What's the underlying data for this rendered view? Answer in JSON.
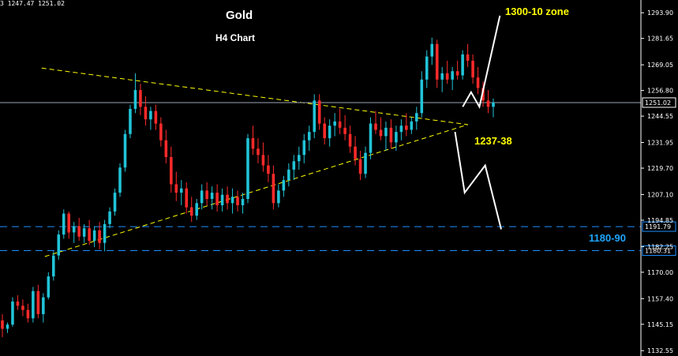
{
  "ohlc_text": "3 1247.47 1251.02",
  "chart_data": {
    "type": "candlestick",
    "title": "Gold",
    "subtitle": "H4 Chart",
    "ylim": [
      1130,
      1300
    ],
    "y_ticks": [
      "1293.90",
      "1281.65",
      "1269.05",
      "1256.80",
      "1244.55",
      "1231.95",
      "1219.70",
      "1207.10",
      "1194.85",
      "1182.25",
      "1170.00",
      "1157.40",
      "1145.15",
      "1132.55"
    ],
    "y_tick_values": [
      1293.9,
      1281.65,
      1269.05,
      1256.8,
      1244.55,
      1231.95,
      1219.7,
      1207.1,
      1194.85,
      1182.25,
      1170.0,
      1157.4,
      1145.15,
      1132.55
    ],
    "current_price": {
      "label": "1251.02",
      "value": 1251.02
    },
    "horizontal_levels": [
      {
        "label": "1191.79",
        "value": 1191.79,
        "style": "dashed",
        "color": "#1e90ff"
      },
      {
        "label": "1180.31",
        "value": 1180.31,
        "style": "dashed",
        "color": "#1e90ff"
      }
    ],
    "trendlines": [
      {
        "name": "upper",
        "from": [
          0.065,
          1267.5
        ],
        "to": [
          0.73,
          1240.5
        ],
        "color": "#ffff00",
        "style": "dashed"
      },
      {
        "name": "lower",
        "from": [
          0.07,
          1177.5
        ],
        "to": [
          0.73,
          1240.5
        ],
        "color": "#ffff00",
        "style": "dashed"
      }
    ],
    "annotations": [
      {
        "text": "1300-10 zone",
        "color": "#ffff00"
      },
      {
        "text": "1237-38",
        "color": "#ffff00"
      },
      {
        "text": "1180-90",
        "color": "#1ea5ff"
      }
    ],
    "projection_up": [
      [
        0.722,
        1249
      ],
      [
        0.735,
        1256
      ],
      [
        0.748,
        1249
      ],
      [
        0.78,
        1292.5
      ]
    ],
    "projection_down": [
      [
        0.71,
        1237
      ],
      [
        0.725,
        1208
      ],
      [
        0.757,
        1221
      ],
      [
        0.782,
        1190.5
      ]
    ],
    "candles": [
      [
        1147,
        1150,
        1139,
        1143
      ],
      [
        1143,
        1146,
        1141,
        1145
      ],
      [
        1145,
        1158,
        1144,
        1156
      ],
      [
        1156,
        1159,
        1152,
        1154
      ],
      [
        1154,
        1157,
        1149,
        1152
      ],
      [
        1152,
        1155,
        1146,
        1148
      ],
      [
        1148,
        1163,
        1146,
        1161
      ],
      [
        1161,
        1164,
        1148,
        1150
      ],
      [
        1150,
        1160,
        1146,
        1158
      ],
      [
        1158,
        1170,
        1157,
        1168
      ],
      [
        1168,
        1180,
        1166,
        1178
      ],
      [
        1178,
        1190,
        1176,
        1188
      ],
      [
        1188,
        1200,
        1186,
        1198
      ],
      [
        1198,
        1199,
        1186,
        1189
      ],
      [
        1189,
        1194,
        1184,
        1192
      ],
      [
        1192,
        1196,
        1185,
        1187
      ],
      [
        1187,
        1193,
        1184,
        1191
      ],
      [
        1191,
        1195,
        1183,
        1185
      ],
      [
        1185,
        1192,
        1182,
        1190
      ],
      [
        1190,
        1194,
        1181,
        1184
      ],
      [
        1184,
        1195,
        1180,
        1193
      ],
      [
        1193,
        1201,
        1191,
        1199
      ],
      [
        1199,
        1210,
        1197,
        1208
      ],
      [
        1208,
        1222,
        1206,
        1220
      ],
      [
        1220,
        1238,
        1218,
        1236
      ],
      [
        1236,
        1250,
        1234,
        1248
      ],
      [
        1248,
        1265,
        1246,
        1257
      ],
      [
        1257,
        1260,
        1245,
        1249
      ],
      [
        1249,
        1254,
        1240,
        1243
      ],
      [
        1243,
        1249,
        1238,
        1247
      ],
      [
        1247,
        1250,
        1238,
        1241
      ],
      [
        1241,
        1244,
        1230,
        1233
      ],
      [
        1233,
        1238,
        1222,
        1225
      ],
      [
        1225,
        1230,
        1208,
        1212
      ],
      [
        1212,
        1218,
        1204,
        1208
      ],
      [
        1208,
        1214,
        1202,
        1210
      ],
      [
        1210,
        1213,
        1198,
        1201
      ],
      [
        1201,
        1206,
        1194,
        1197
      ],
      [
        1197,
        1205,
        1195,
        1203
      ],
      [
        1203,
        1212,
        1200,
        1209
      ],
      [
        1209,
        1213,
        1202,
        1205
      ],
      [
        1205,
        1211,
        1200,
        1208
      ],
      [
        1208,
        1212,
        1199,
        1202
      ],
      [
        1202,
        1210,
        1199,
        1207
      ],
      [
        1207,
        1211,
        1200,
        1203
      ],
      [
        1203,
        1210,
        1198,
        1206
      ],
      [
        1206,
        1209,
        1199,
        1202
      ],
      [
        1202,
        1208,
        1198,
        1205
      ],
      [
        1205,
        1236,
        1203,
        1234
      ],
      [
        1234,
        1240,
        1226,
        1229
      ],
      [
        1229,
        1234,
        1222,
        1226
      ],
      [
        1226,
        1232,
        1218,
        1221
      ],
      [
        1221,
        1226,
        1213,
        1217
      ],
      [
        1217,
        1221,
        1200,
        1203
      ],
      [
        1203,
        1212,
        1201,
        1209
      ],
      [
        1209,
        1216,
        1206,
        1214
      ],
      [
        1214,
        1222,
        1211,
        1219
      ],
      [
        1219,
        1226,
        1214,
        1223
      ],
      [
        1223,
        1230,
        1219,
        1226
      ],
      [
        1226,
        1236,
        1222,
        1233
      ],
      [
        1233,
        1240,
        1228,
        1237
      ],
      [
        1237,
        1255,
        1234,
        1252
      ],
      [
        1252,
        1255,
        1238,
        1241
      ],
      [
        1241,
        1244,
        1231,
        1234
      ],
      [
        1234,
        1243,
        1230,
        1240
      ],
      [
        1240,
        1246,
        1235,
        1242
      ],
      [
        1242,
        1248,
        1236,
        1239
      ],
      [
        1239,
        1245,
        1233,
        1236
      ],
      [
        1236,
        1240,
        1227,
        1230
      ],
      [
        1230,
        1235,
        1221,
        1224
      ],
      [
        1224,
        1228,
        1214,
        1217
      ],
      [
        1217,
        1230,
        1215,
        1227
      ],
      [
        1227,
        1244,
        1224,
        1241
      ],
      [
        1241,
        1247,
        1236,
        1238
      ],
      [
        1238,
        1244,
        1233,
        1235
      ],
      [
        1235,
        1242,
        1228,
        1239
      ],
      [
        1239,
        1243,
        1229,
        1232
      ],
      [
        1232,
        1240,
        1228,
        1237
      ],
      [
        1237,
        1243,
        1233,
        1240
      ],
      [
        1240,
        1246,
        1235,
        1238
      ],
      [
        1238,
        1244,
        1236,
        1242
      ],
      [
        1242,
        1249,
        1238,
        1246
      ],
      [
        1246,
        1266,
        1244,
        1262
      ],
      [
        1262,
        1276,
        1258,
        1273
      ],
      [
        1273,
        1282,
        1269,
        1279
      ],
      [
        1279,
        1281,
        1258,
        1262
      ],
      [
        1262,
        1268,
        1256,
        1265
      ],
      [
        1265,
        1271,
        1260,
        1262
      ],
      [
        1262,
        1268,
        1257,
        1266
      ],
      [
        1266,
        1271,
        1262,
        1264
      ],
      [
        1264,
        1276,
        1262,
        1274
      ],
      [
        1274,
        1279,
        1268,
        1271
      ],
      [
        1271,
        1274,
        1260,
        1263
      ],
      [
        1263,
        1268,
        1255,
        1258
      ],
      [
        1258,
        1261,
        1249,
        1252
      ],
      [
        1252,
        1257,
        1246,
        1249
      ],
      [
        1249,
        1253,
        1244,
        1251
      ]
    ]
  }
}
